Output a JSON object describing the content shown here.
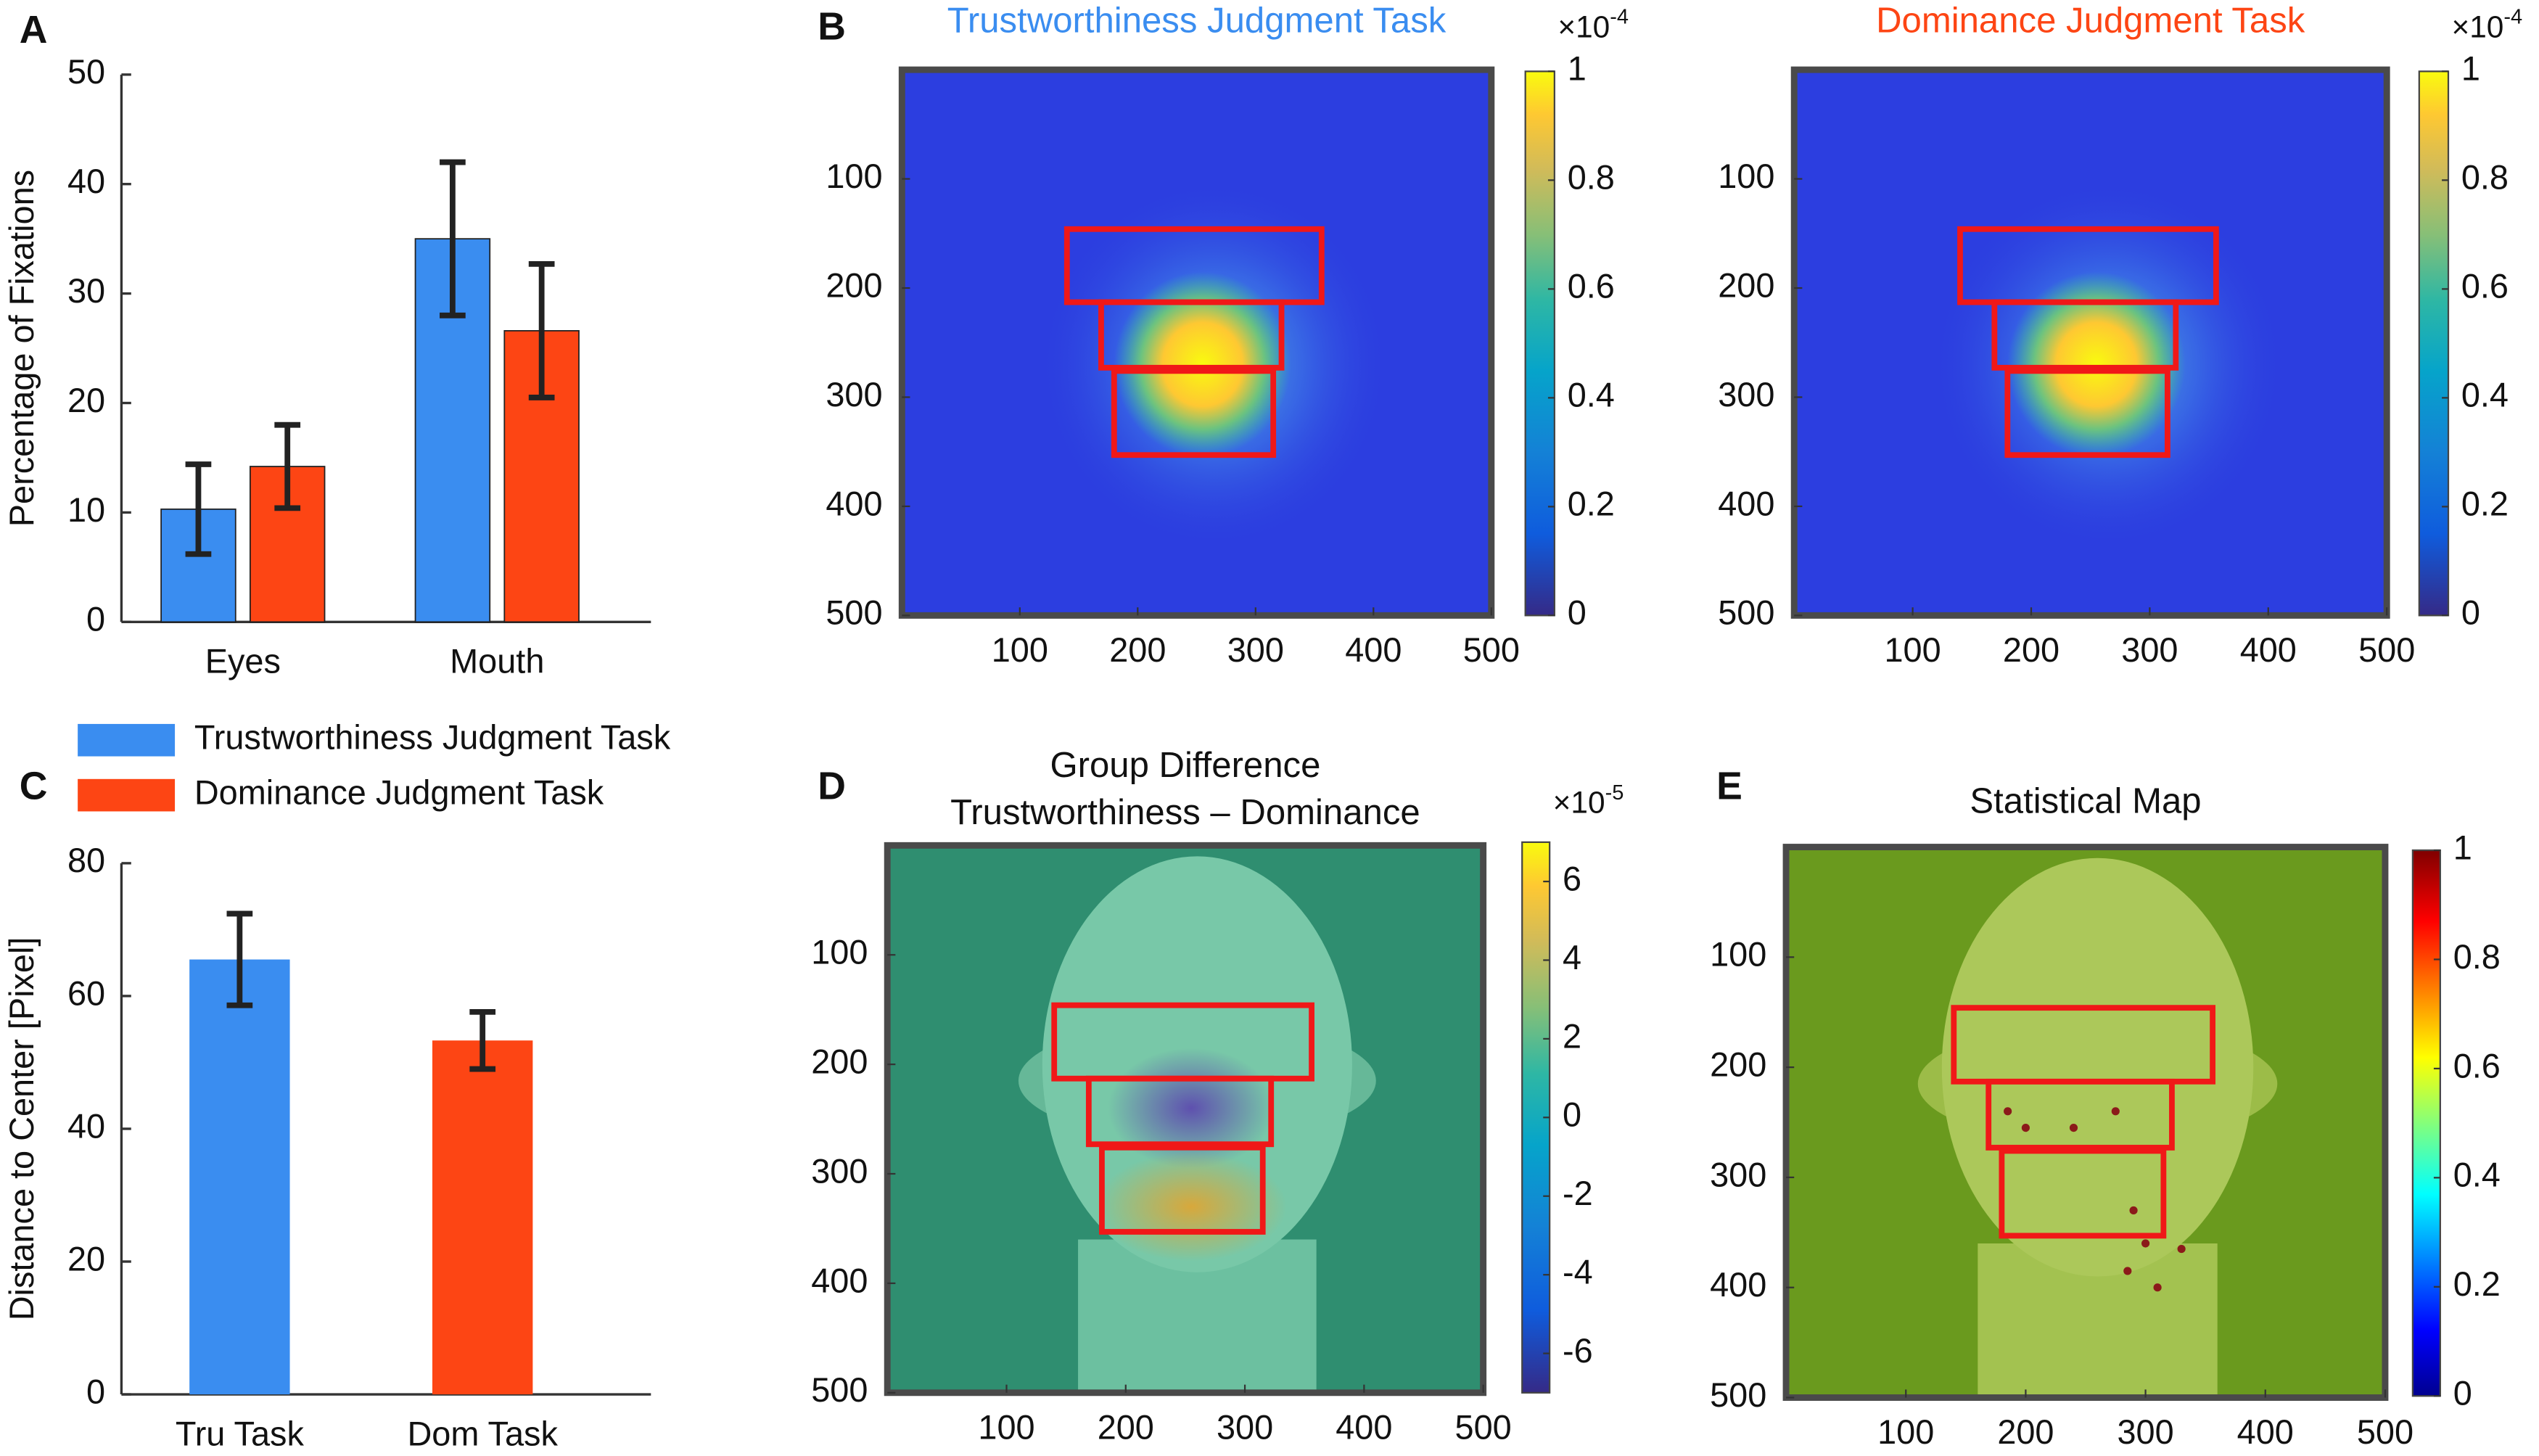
{
  "chart_data": [
    {
      "type": "bar",
      "panel": "A",
      "categories": [
        "Eyes",
        "Mouth"
      ],
      "ylabel": "Percentage of Fixations",
      "ylim": [
        0,
        50
      ],
      "yticks": [
        0,
        10,
        20,
        30,
        40,
        50
      ],
      "series": [
        {
          "name": "Trustworthiness Judgment Task",
          "color": "#3a8df0",
          "values": [
            10.3,
            35
          ],
          "errors": [
            4.1,
            7
          ]
        },
        {
          "name": "Dominance Judgment Task",
          "color": "#fd4514",
          "values": [
            14.2,
            26.6
          ],
          "errors": [
            3.8,
            6.1
          ]
        }
      ]
    },
    {
      "type": "bar",
      "panel": "C",
      "categories": [
        "Tru Task",
        "Dom Task"
      ],
      "ylabel": "Distance to Center [Pixel]",
      "ylim": [
        0,
        80
      ],
      "yticks": [
        0,
        20,
        40,
        60,
        80
      ],
      "values": [
        65.5,
        53.3
      ],
      "errors": [
        6.9,
        4.3
      ],
      "colors": [
        "#3a8df0",
        "#fd4514"
      ]
    },
    {
      "type": "heatmap",
      "panel": "B",
      "title": "Trustworthiness Judgment Task",
      "title_color": "#3a8df0",
      "xlim": [
        0,
        500
      ],
      "ylim": [
        0,
        500
      ],
      "xticks": [
        100,
        200,
        300,
        400,
        500
      ],
      "yticks": [
        100,
        200,
        300,
        400,
        500
      ],
      "colormap": "parula",
      "clim": [
        0,
        1
      ],
      "cticks": [
        0,
        0.2,
        0.4,
        0.6,
        0.8,
        1
      ],
      "cscale": {
        "base": "×10",
        "exponent": "-4"
      }
    },
    {
      "type": "heatmap",
      "title": "Dominance Judgment Task",
      "title_color": "#fd4514",
      "xlim": [
        0,
        500
      ],
      "ylim": [
        0,
        500
      ],
      "xticks": [
        100,
        200,
        300,
        400,
        500
      ],
      "yticks": [
        100,
        200,
        300,
        400,
        500
      ],
      "colormap": "parula",
      "clim": [
        0,
        1
      ],
      "cticks": [
        0,
        0.2,
        0.4,
        0.6,
        0.8,
        1
      ],
      "cscale": {
        "base": "×10",
        "exponent": "-4"
      }
    },
    {
      "type": "heatmap",
      "panel": "D",
      "title": [
        "Group Difference",
        "Trustworthiness – Dominance"
      ],
      "xlim": [
        0,
        500
      ],
      "ylim": [
        0,
        500
      ],
      "xticks": [
        100,
        200,
        300,
        400,
        500
      ],
      "yticks": [
        100,
        200,
        300,
        400,
        500
      ],
      "colormap": "parula",
      "clim": [
        -7,
        7
      ],
      "cticks": [
        -6,
        -4,
        -2,
        0,
        2,
        4,
        6
      ],
      "cscale": {
        "base": "×10",
        "exponent": "-5"
      }
    },
    {
      "type": "heatmap",
      "panel": "E",
      "title": "Statistical Map",
      "xlim": [
        0,
        500
      ],
      "ylim": [
        0,
        500
      ],
      "xticks": [
        100,
        200,
        300,
        400,
        500
      ],
      "yticks": [
        100,
        200,
        300,
        400,
        500
      ],
      "colormap": "jet",
      "clim": [
        0,
        1
      ],
      "cticks": [
        0,
        0.2,
        0.4,
        0.6,
        0.8,
        1
      ]
    }
  ]
}
